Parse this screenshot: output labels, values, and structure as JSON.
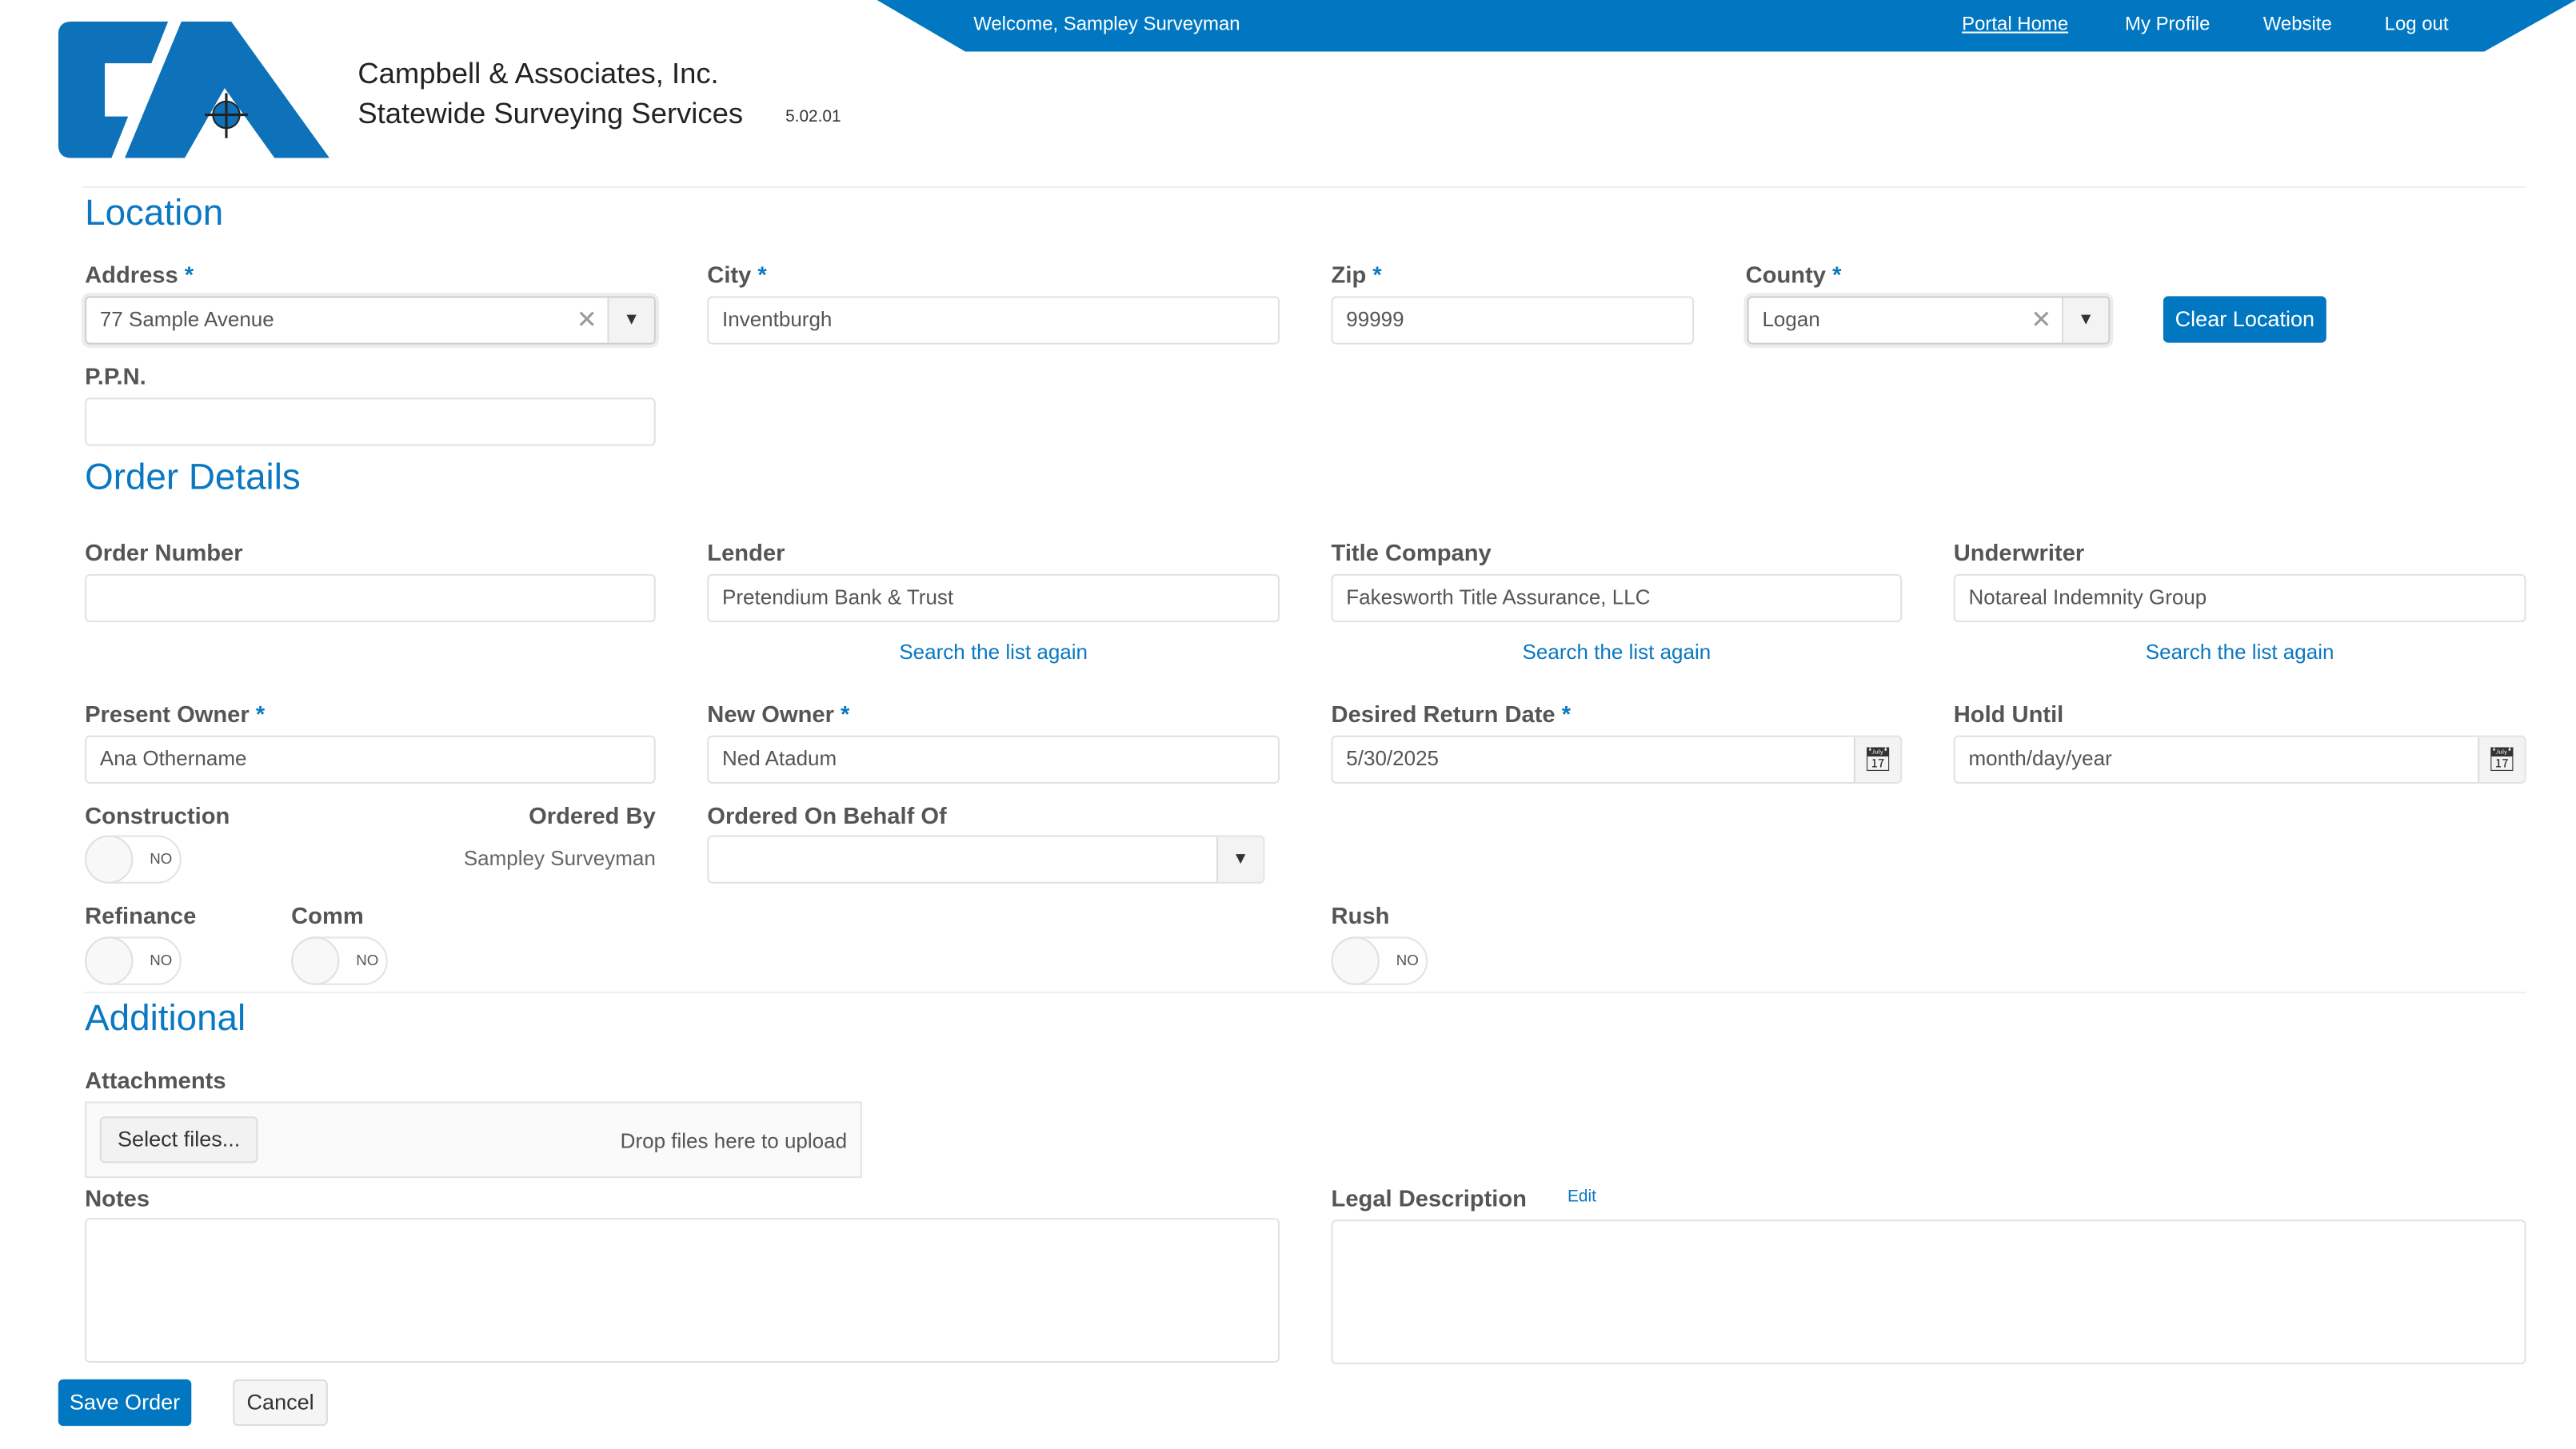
{
  "header": {
    "company_line1": "Campbell & Associates, Inc.",
    "company_line2": "Statewide Surveying Services",
    "version": "5.02.01",
    "logo_text": "CA",
    "welcome": "Welcome, Sampley Surveyman",
    "nav": [
      "Portal Home",
      "My Profile",
      "Website",
      "Log out"
    ]
  },
  "brand_color": "#0077c0",
  "location": {
    "heading": "Location",
    "address": {
      "label": "Address",
      "value": "77 Sample Avenue"
    },
    "city": {
      "label": "City",
      "value": "Inventburgh"
    },
    "zip": {
      "label": "Zip",
      "value": "99999"
    },
    "county": {
      "label": "County",
      "value": "Logan"
    },
    "clear_button": "Clear Location",
    "ppn": {
      "label": "P.P.N.",
      "value": ""
    },
    "required_mark": "*"
  },
  "order": {
    "heading": "Order Details",
    "order_number": {
      "label": "Order Number",
      "value": ""
    },
    "lender": {
      "label": "Lender",
      "value": "Pretendium Bank & Trust"
    },
    "title_company": {
      "label": "Title Company",
      "value": "Fakesworth Title Assurance, LLC"
    },
    "underwriter": {
      "label": "Underwriter",
      "value": "Notareal Indemnity Group"
    },
    "search_again": "Search the list again",
    "present_owner": {
      "label": "Present Owner",
      "value": "Ana Othername"
    },
    "new_owner": {
      "label": "New Owner",
      "value": "Ned Atadum"
    },
    "desired_return": {
      "label": "Desired Return Date",
      "value": "5/30/2025"
    },
    "hold_until": {
      "label": "Hold Until",
      "placeholder": "month/day/year"
    },
    "construction": {
      "label": "Construction",
      "state": "NO"
    },
    "ordered_by": {
      "label": "Ordered By",
      "value": "Sampley Surveyman"
    },
    "on_behalf": {
      "label": "Ordered On Behalf Of",
      "value": ""
    },
    "refinance": {
      "label": "Refinance",
      "state": "NO"
    },
    "comm": {
      "label": "Comm",
      "state": "NO"
    },
    "rush": {
      "label": "Rush",
      "state": "NO"
    }
  },
  "additional": {
    "heading": "Additional",
    "attachments": {
      "label": "Attachments",
      "select_button": "Select files...",
      "drop_text": "Drop files here to upload"
    },
    "notes": {
      "label": "Notes",
      "value": ""
    },
    "legal": {
      "label": "Legal Description",
      "edit": "Edit",
      "value": ""
    }
  },
  "actions": {
    "save": "Save Order",
    "cancel": "Cancel"
  }
}
